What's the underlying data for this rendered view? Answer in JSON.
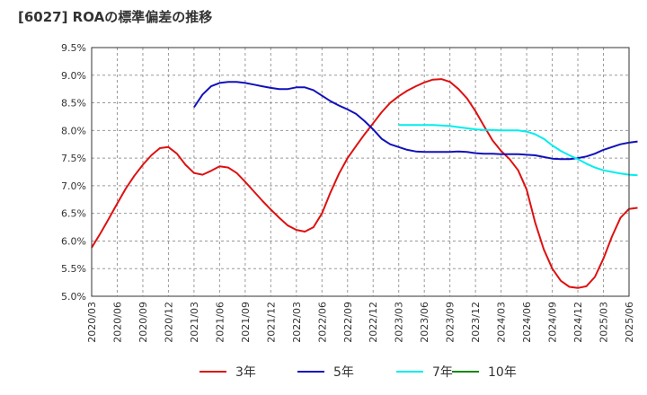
{
  "chart_data": {
    "type": "line",
    "title": "[6027]  ROAの標準偏差の推移",
    "xlabel": "",
    "ylabel": "",
    "ylim": [
      5.0,
      9.5
    ],
    "x_start": "2020/03",
    "x_end": "2025/06",
    "grid": true,
    "legend_position": "bottom",
    "y_ticks": [
      "5.0%",
      "5.5%",
      "6.0%",
      "6.5%",
      "7.0%",
      "7.5%",
      "8.0%",
      "8.5%",
      "9.0%",
      "9.5%"
    ],
    "x_ticks": [
      "2020/03",
      "2020/06",
      "2020/09",
      "2020/12",
      "2021/03",
      "2021/06",
      "2021/09",
      "2021/12",
      "2022/03",
      "2022/06",
      "2022/09",
      "2022/12",
      "2023/03",
      "2023/06",
      "2023/09",
      "2023/12",
      "2024/03",
      "2024/06",
      "2024/09",
      "2024/12",
      "2025/03",
      "2025/06"
    ],
    "series": [
      {
        "name": "3年",
        "color": "#dd1111",
        "points": [
          [
            "2020/03",
            5.88
          ],
          [
            "2020/04",
            6.13
          ],
          [
            "2020/05",
            6.4
          ],
          [
            "2020/06",
            6.68
          ],
          [
            "2020/07",
            6.95
          ],
          [
            "2020/08",
            7.18
          ],
          [
            "2020/09",
            7.38
          ],
          [
            "2020/10",
            7.55
          ],
          [
            "2020/11",
            7.68
          ],
          [
            "2020/12",
            7.7
          ],
          [
            "2021/01",
            7.58
          ],
          [
            "2021/02",
            7.38
          ],
          [
            "2021/03",
            7.23
          ],
          [
            "2021/04",
            7.2
          ],
          [
            "2021/05",
            7.27
          ],
          [
            "2021/06",
            7.35
          ],
          [
            "2021/07",
            7.33
          ],
          [
            "2021/08",
            7.23
          ],
          [
            "2021/09",
            7.07
          ],
          [
            "2021/10",
            6.9
          ],
          [
            "2021/11",
            6.73
          ],
          [
            "2021/12",
            6.57
          ],
          [
            "2022/01",
            6.42
          ],
          [
            "2022/02",
            6.28
          ],
          [
            "2022/03",
            6.2
          ],
          [
            "2022/04",
            6.17
          ],
          [
            "2022/05",
            6.25
          ],
          [
            "2022/06",
            6.5
          ],
          [
            "2022/07",
            6.88
          ],
          [
            "2022/08",
            7.22
          ],
          [
            "2022/09",
            7.5
          ],
          [
            "2022/10",
            7.72
          ],
          [
            "2022/11",
            7.93
          ],
          [
            "2022/12",
            8.13
          ],
          [
            "2023/01",
            8.33
          ],
          [
            "2023/02",
            8.5
          ],
          [
            "2023/03",
            8.62
          ],
          [
            "2023/04",
            8.72
          ],
          [
            "2023/05",
            8.8
          ],
          [
            "2023/06",
            8.87
          ],
          [
            "2023/07",
            8.92
          ],
          [
            "2023/08",
            8.93
          ],
          [
            "2023/09",
            8.88
          ],
          [
            "2023/10",
            8.75
          ],
          [
            "2023/11",
            8.58
          ],
          [
            "2023/12",
            8.35
          ],
          [
            "2024/01",
            8.08
          ],
          [
            "2024/02",
            7.82
          ],
          [
            "2024/03",
            7.63
          ],
          [
            "2024/04",
            7.48
          ],
          [
            "2024/05",
            7.28
          ],
          [
            "2024/06",
            6.93
          ],
          [
            "2024/07",
            6.33
          ],
          [
            "2024/08",
            5.85
          ],
          [
            "2024/09",
            5.5
          ],
          [
            "2024/10",
            5.28
          ],
          [
            "2024/11",
            5.17
          ],
          [
            "2024/12",
            5.15
          ],
          [
            "2025/01",
            5.18
          ],
          [
            "2025/02",
            5.35
          ],
          [
            "2025/03",
            5.68
          ],
          [
            "2025/04",
            6.08
          ],
          [
            "2025/05",
            6.42
          ],
          [
            "2025/06",
            6.58
          ],
          [
            "2025/07",
            6.6
          ]
        ]
      },
      {
        "name": "5年",
        "color": "#1111bb",
        "points": [
          [
            "2021/03",
            8.42
          ],
          [
            "2021/04",
            8.65
          ],
          [
            "2021/05",
            8.8
          ],
          [
            "2021/06",
            8.86
          ],
          [
            "2021/07",
            8.88
          ],
          [
            "2021/08",
            8.88
          ],
          [
            "2021/09",
            8.86
          ],
          [
            "2021/10",
            8.83
          ],
          [
            "2021/11",
            8.8
          ],
          [
            "2021/12",
            8.77
          ],
          [
            "2022/01",
            8.75
          ],
          [
            "2022/02",
            8.75
          ],
          [
            "2022/03",
            8.78
          ],
          [
            "2022/04",
            8.78
          ],
          [
            "2022/05",
            8.73
          ],
          [
            "2022/06",
            8.63
          ],
          [
            "2022/07",
            8.53
          ],
          [
            "2022/08",
            8.45
          ],
          [
            "2022/09",
            8.38
          ],
          [
            "2022/10",
            8.3
          ],
          [
            "2022/11",
            8.17
          ],
          [
            "2022/12",
            8.02
          ],
          [
            "2023/01",
            7.85
          ],
          [
            "2023/02",
            7.75
          ],
          [
            "2023/03",
            7.7
          ],
          [
            "2023/04",
            7.65
          ],
          [
            "2023/05",
            7.62
          ],
          [
            "2023/06",
            7.61
          ],
          [
            "2023/07",
            7.61
          ],
          [
            "2023/08",
            7.61
          ],
          [
            "2023/09",
            7.61
          ],
          [
            "2023/10",
            7.62
          ],
          [
            "2023/11",
            7.61
          ],
          [
            "2023/12",
            7.59
          ],
          [
            "2024/01",
            7.58
          ],
          [
            "2024/02",
            7.58
          ],
          [
            "2024/03",
            7.57
          ],
          [
            "2024/04",
            7.57
          ],
          [
            "2024/05",
            7.57
          ],
          [
            "2024/06",
            7.56
          ],
          [
            "2024/07",
            7.55
          ],
          [
            "2024/08",
            7.52
          ],
          [
            "2024/09",
            7.49
          ],
          [
            "2024/10",
            7.48
          ],
          [
            "2024/11",
            7.48
          ],
          [
            "2024/12",
            7.5
          ],
          [
            "2025/01",
            7.53
          ],
          [
            "2025/02",
            7.58
          ],
          [
            "2025/03",
            7.65
          ],
          [
            "2025/04",
            7.7
          ],
          [
            "2025/05",
            7.75
          ],
          [
            "2025/06",
            7.78
          ],
          [
            "2025/07",
            7.8
          ]
        ]
      },
      {
        "name": "7年",
        "color": "#00eeee",
        "points": [
          [
            "2023/03",
            8.1
          ],
          [
            "2023/04",
            8.1
          ],
          [
            "2023/05",
            8.1
          ],
          [
            "2023/06",
            8.1
          ],
          [
            "2023/07",
            8.1
          ],
          [
            "2023/08",
            8.09
          ],
          [
            "2023/09",
            8.08
          ],
          [
            "2023/10",
            8.06
          ],
          [
            "2023/11",
            8.04
          ],
          [
            "2023/12",
            8.02
          ],
          [
            "2024/01",
            8.01
          ],
          [
            "2024/02",
            8.01
          ],
          [
            "2024/03",
            8.0
          ],
          [
            "2024/04",
            8.0
          ],
          [
            "2024/05",
            8.0
          ],
          [
            "2024/06",
            7.98
          ],
          [
            "2024/07",
            7.93
          ],
          [
            "2024/08",
            7.85
          ],
          [
            "2024/09",
            7.73
          ],
          [
            "2024/10",
            7.63
          ],
          [
            "2024/11",
            7.55
          ],
          [
            "2024/12",
            7.48
          ],
          [
            "2025/01",
            7.4
          ],
          [
            "2025/02",
            7.33
          ],
          [
            "2025/03",
            7.28
          ],
          [
            "2025/04",
            7.25
          ],
          [
            "2025/05",
            7.22
          ],
          [
            "2025/06",
            7.2
          ],
          [
            "2025/07",
            7.19
          ]
        ]
      },
      {
        "name": "10年",
        "color": "#118811",
        "points": []
      }
    ]
  }
}
